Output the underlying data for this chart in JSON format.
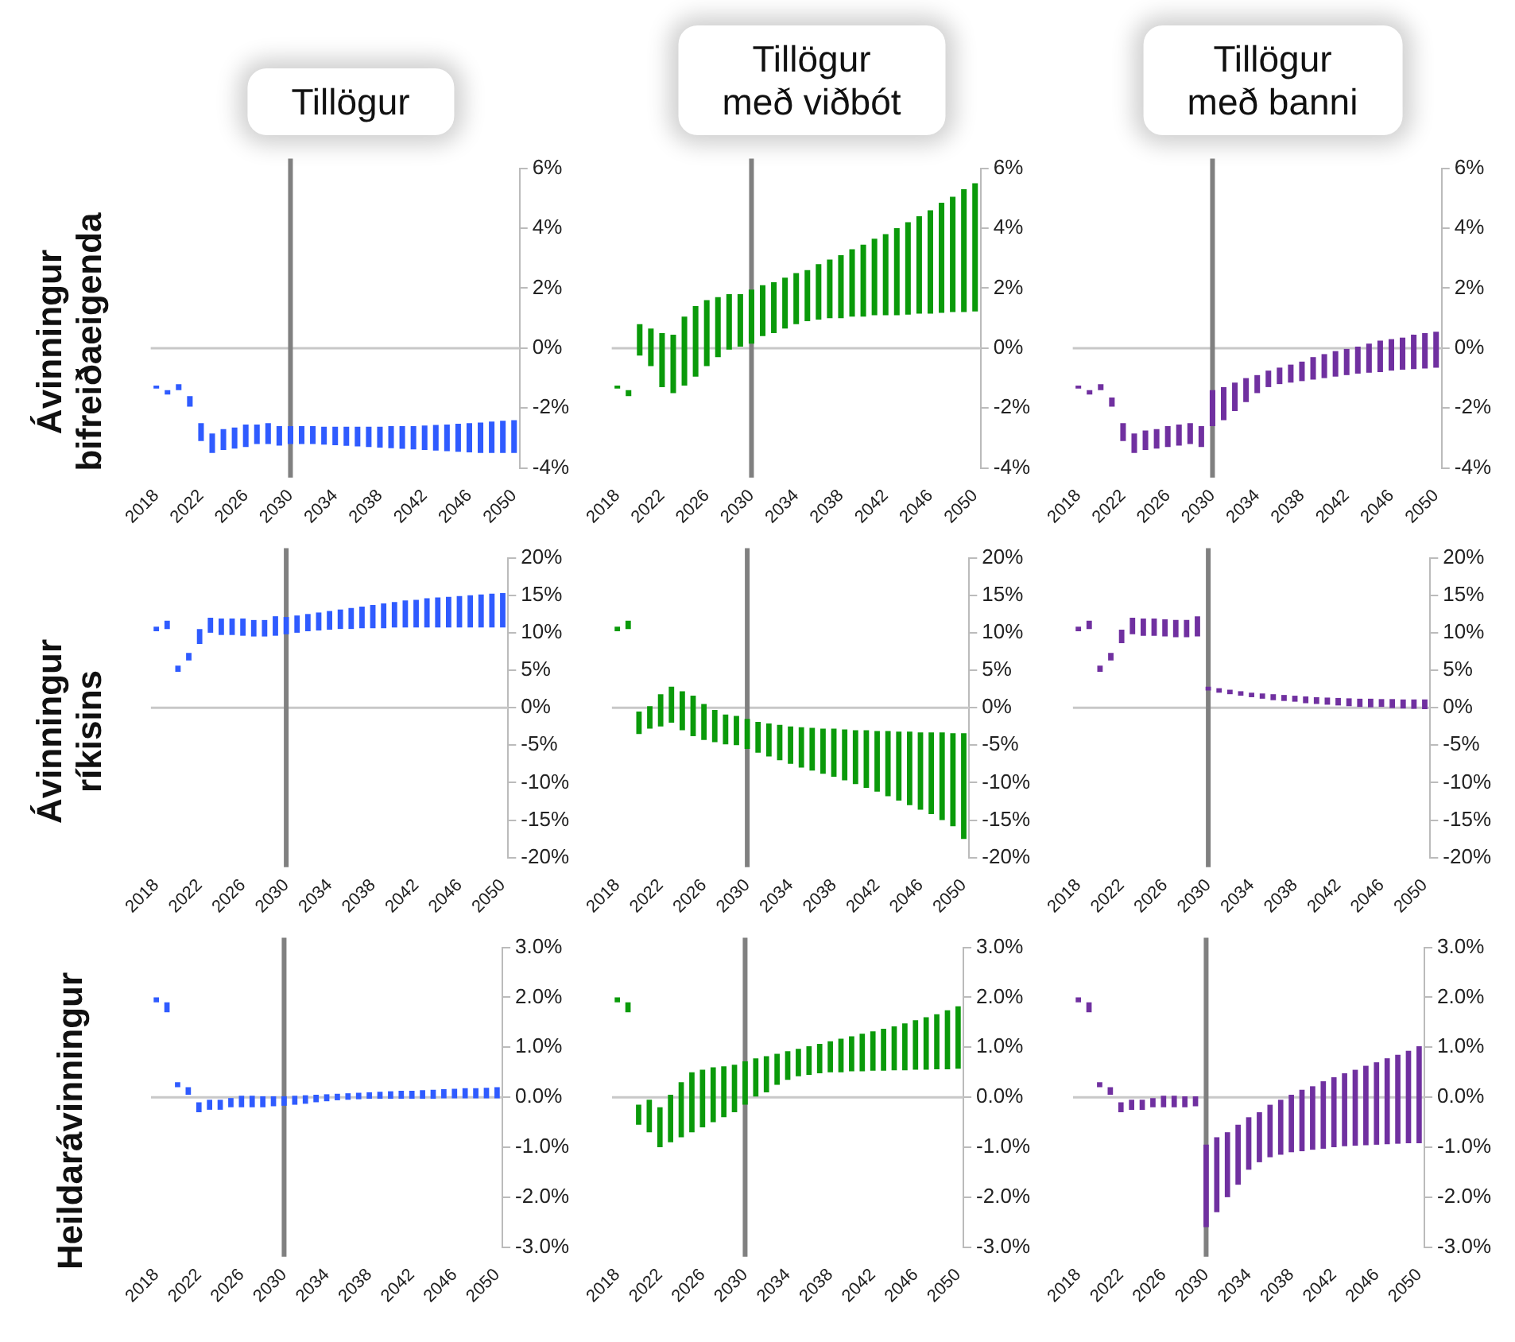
{
  "chart_data": [
    {
      "type": "bar",
      "title": "Tillögur",
      "ylabel": "Ávinningur\nbifreiðaeigenda",
      "categories": [
        "2018",
        null,
        null,
        null,
        "2022",
        null,
        null,
        null,
        "2026",
        null,
        null,
        null,
        "2030",
        null,
        null,
        null,
        "2034",
        null,
        null,
        null,
        "2038",
        null,
        null,
        null,
        "2042",
        null,
        null,
        null,
        "2046",
        null,
        null,
        null,
        "2050"
      ],
      "color": "#2f5bff",
      "base": [
        -1.35,
        -1.55,
        -1.4,
        -1.95,
        -3.1,
        -3.5,
        -3.4,
        -3.35,
        -3.3,
        -3.2,
        -3.2,
        -3.25,
        -3.2,
        -3.2,
        -3.2,
        -3.22,
        -3.24,
        -3.26,
        -3.28,
        -3.3,
        -3.32,
        -3.34,
        -3.36,
        -3.38,
        -3.4,
        -3.42,
        -3.44,
        -3.46,
        -3.48,
        -3.5,
        -3.5,
        -3.5,
        -3.5
      ],
      "values": [
        0.1,
        0.15,
        0.2,
        0.35,
        0.6,
        0.65,
        0.7,
        0.7,
        0.75,
        0.65,
        0.7,
        0.65,
        0.6,
        0.6,
        0.6,
        0.6,
        0.62,
        0.64,
        0.66,
        0.68,
        0.7,
        0.74,
        0.76,
        0.78,
        0.82,
        0.86,
        0.89,
        0.94,
        0.98,
        1.02,
        1.05,
        1.08,
        1.1
      ],
      "ylim": [
        -4,
        6
      ],
      "yticks": [
        {
          "value": -4,
          "label": "-4%"
        },
        {
          "value": -2,
          "label": "-2%"
        },
        {
          "value": 0,
          "label": "0%"
        },
        {
          "value": 2,
          "label": "2%"
        },
        {
          "value": 4,
          "label": "4%"
        },
        {
          "value": 6,
          "label": "6%"
        }
      ],
      "ref_lines": [
        {
          "axis": "x",
          "value": "2030",
          "color": "#808080"
        }
      ]
    },
    {
      "type": "bar",
      "title": "Tillögur\nmeð viðbót",
      "categories": [
        "2018",
        null,
        null,
        null,
        "2022",
        null,
        null,
        null,
        "2026",
        null,
        null,
        null,
        "2030",
        null,
        null,
        null,
        "2034",
        null,
        null,
        null,
        "2038",
        null,
        null,
        null,
        "2042",
        null,
        null,
        null,
        "2046",
        null,
        null,
        null,
        "2050"
      ],
      "color": "#0a9a0a",
      "base": [
        -1.35,
        -1.6,
        -0.25,
        -0.6,
        -1.3,
        -1.5,
        -1.25,
        -0.95,
        -0.6,
        -0.3,
        -0.05,
        0.05,
        0.15,
        0.4,
        0.5,
        0.65,
        0.8,
        0.9,
        0.95,
        1.0,
        1.0,
        1.05,
        1.05,
        1.1,
        1.1,
        1.1,
        1.12,
        1.15,
        1.15,
        1.18,
        1.2,
        1.2,
        1.22
      ],
      "values": [
        0.1,
        0.2,
        1.05,
        1.25,
        1.8,
        1.95,
        2.3,
        2.35,
        2.2,
        2.0,
        1.85,
        1.75,
        1.8,
        1.7,
        1.7,
        1.7,
        1.7,
        1.7,
        1.85,
        1.95,
        2.1,
        2.25,
        2.4,
        2.55,
        2.7,
        2.9,
        3.08,
        3.25,
        3.45,
        3.67,
        3.85,
        4.1,
        4.28
      ],
      "ylim": [
        -4,
        6
      ],
      "yticks": [
        {
          "value": -4,
          "label": "-4%"
        },
        {
          "value": -2,
          "label": "-2%"
        },
        {
          "value": 0,
          "label": "0%"
        },
        {
          "value": 2,
          "label": "2%"
        },
        {
          "value": 4,
          "label": "4%"
        },
        {
          "value": 6,
          "label": "6%"
        }
      ],
      "ref_lines": [
        {
          "axis": "x",
          "value": "2030",
          "color": "#808080"
        }
      ]
    },
    {
      "type": "bar",
      "title": "Tillögur\nmeð banni",
      "categories": [
        "2018",
        null,
        null,
        null,
        "2022",
        null,
        null,
        null,
        "2026",
        null,
        null,
        null,
        "2030",
        null,
        null,
        null,
        "2034",
        null,
        null,
        null,
        "2038",
        null,
        null,
        null,
        "2042",
        null,
        null,
        null,
        "2046",
        null,
        null,
        null,
        "2050"
      ],
      "color": "#7030a0",
      "base": [
        -1.35,
        -1.55,
        -1.4,
        -1.95,
        -3.1,
        -3.5,
        -3.4,
        -3.35,
        -3.3,
        -3.25,
        -3.2,
        -3.3,
        -2.6,
        -2.4,
        -2.1,
        -1.8,
        -1.5,
        -1.3,
        -1.2,
        -1.15,
        -1.1,
        -1.05,
        -1.0,
        -0.95,
        -0.9,
        -0.85,
        -0.82,
        -0.8,
        -0.75,
        -0.72,
        -0.7,
        -0.68,
        -0.65
      ],
      "values": [
        0.1,
        0.15,
        0.2,
        0.3,
        0.6,
        0.65,
        0.65,
        0.65,
        0.7,
        0.7,
        0.7,
        0.7,
        1.2,
        1.1,
        0.95,
        0.8,
        0.6,
        0.55,
        0.55,
        0.6,
        0.65,
        0.75,
        0.8,
        0.85,
        0.9,
        0.9,
        0.97,
        1.05,
        1.05,
        1.07,
        1.15,
        1.18,
        1.2
      ],
      "ylim": [
        -4,
        6
      ],
      "yticks": [
        {
          "value": -4,
          "label": "-4%"
        },
        {
          "value": -2,
          "label": "-2%"
        },
        {
          "value": 0,
          "label": "0%"
        },
        {
          "value": 2,
          "label": "2%"
        },
        {
          "value": 4,
          "label": "4%"
        },
        {
          "value": 6,
          "label": "6%"
        }
      ],
      "ref_lines": [
        {
          "axis": "x",
          "value": "2030",
          "color": "#808080"
        }
      ]
    },
    {
      "type": "bar",
      "ylabel": "Ávinningur\nríkisins",
      "categories": [
        "2018",
        null,
        null,
        null,
        "2022",
        null,
        null,
        null,
        "2026",
        null,
        null,
        null,
        "2030",
        null,
        null,
        null,
        "2034",
        null,
        null,
        null,
        "2038",
        null,
        null,
        null,
        "2042",
        null,
        null,
        null,
        "2046",
        null,
        null,
        null,
        "2050"
      ],
      "color": "#2f5bff",
      "base": [
        10.2,
        10.5,
        4.8,
        6.3,
        8.5,
        10,
        9.7,
        9.7,
        9.6,
        9.5,
        9.5,
        9.6,
        9.8,
        10,
        10.2,
        10.3,
        10.4,
        10.5,
        10.5,
        10.6,
        10.6,
        10.6,
        10.7,
        10.7,
        10.7,
        10.7,
        10.7,
        10.7,
        10.7,
        10.7,
        10.7,
        10.7,
        10.7
      ],
      "values": [
        0.6,
        1.1,
        0.8,
        1.0,
        2.0,
        2,
        2.2,
        2.2,
        2.3,
        2.2,
        2.2,
        2.6,
        2.3,
        2.3,
        2.3,
        2.4,
        2.5,
        2.6,
        2.8,
        2.9,
        3.1,
        3.3,
        3.4,
        3.6,
        3.7,
        3.9,
        4.0,
        4.1,
        4.2,
        4.3,
        4.4,
        4.5,
        4.6
      ],
      "ylim": [
        -20,
        20
      ],
      "yticks": [
        {
          "value": -20,
          "label": "-20%"
        },
        {
          "value": -15,
          "label": "-15%"
        },
        {
          "value": -10,
          "label": "-10%"
        },
        {
          "value": -5,
          "label": "-5%"
        },
        {
          "value": 0,
          "label": "0%"
        },
        {
          "value": 5,
          "label": "5%"
        },
        {
          "value": 10,
          "label": "10%"
        },
        {
          "value": 15,
          "label": "15%"
        },
        {
          "value": 20,
          "label": "20%"
        }
      ],
      "ref_lines": [
        {
          "axis": "x",
          "value": "2030",
          "color": "#808080"
        }
      ]
    },
    {
      "type": "bar",
      "categories": [
        "2018",
        null,
        null,
        null,
        "2022",
        null,
        null,
        null,
        "2026",
        null,
        null,
        null,
        "2030",
        null,
        null,
        null,
        "2034",
        null,
        null,
        null,
        "2038",
        null,
        null,
        null,
        "2042",
        null,
        null,
        null,
        "2046",
        null,
        null,
        null,
        "2050"
      ],
      "color": "#0a9a0a",
      "base": [
        10.2,
        10.5,
        -3.5,
        -2.8,
        -2.5,
        -2,
        -3,
        -3.8,
        -4.3,
        -4.6,
        -4.9,
        -5,
        -5.5,
        -6,
        -6.5,
        -7,
        -7.5,
        -8,
        -8.4,
        -8.8,
        -9.2,
        -9.7,
        -10.2,
        -10.7,
        -11.2,
        -11.8,
        -12.4,
        -13,
        -13.6,
        -14.2,
        -15,
        -15.8,
        -17.5
      ],
      "values": [
        0.6,
        1.1,
        3.0,
        3.0,
        4.3,
        4.8,
        5.2,
        5.4,
        4.8,
        4.3,
        4.0,
        3.9,
        4.0,
        4.1,
        4.4,
        4.7,
        5.0,
        5.4,
        5.7,
        6.0,
        6.4,
        6.8,
        7.2,
        7.7,
        8.1,
        8.7,
        9.2,
        9.8,
        10.3,
        10.9,
        11.7,
        12.4,
        14.1
      ],
      "ylim": [
        -20,
        20
      ],
      "yticks": [
        {
          "value": -20,
          "label": "-20%"
        },
        {
          "value": -15,
          "label": "-15%"
        },
        {
          "value": -10,
          "label": "-10%"
        },
        {
          "value": -5,
          "label": "-5%"
        },
        {
          "value": 0,
          "label": "0%"
        },
        {
          "value": 5,
          "label": "5%"
        },
        {
          "value": 10,
          "label": "10%"
        },
        {
          "value": 15,
          "label": "15%"
        },
        {
          "value": 20,
          "label": "20%"
        }
      ],
      "ref_lines": [
        {
          "axis": "x",
          "value": "2030",
          "color": "#808080"
        }
      ]
    },
    {
      "type": "bar",
      "categories": [
        "2018",
        null,
        null,
        null,
        "2022",
        null,
        null,
        null,
        "2026",
        null,
        null,
        null,
        "2030",
        null,
        null,
        null,
        "2034",
        null,
        null,
        null,
        "2038",
        null,
        null,
        null,
        "2042",
        null,
        null,
        null,
        "2046",
        null,
        null,
        null,
        "2050"
      ],
      "color": "#7030a0",
      "base": [
        10.2,
        10.5,
        4.8,
        6.3,
        8.6,
        9.8,
        9.6,
        9.6,
        9.5,
        9.4,
        9.4,
        9.5,
        2.3,
        2.0,
        1.8,
        1.6,
        1.4,
        1.2,
        1.0,
        0.9,
        0.8,
        0.6,
        0.5,
        0.4,
        0.3,
        0.2,
        0.1,
        0.05,
        0,
        -0.05,
        -0.1,
        -0.15,
        -0.2
      ],
      "values": [
        0.6,
        1.1,
        0.8,
        1.0,
        1.8,
        2.2,
        2.3,
        2.3,
        2.3,
        2.3,
        2.3,
        2.7,
        0.5,
        0.6,
        0.6,
        0.6,
        0.6,
        0.7,
        0.8,
        0.8,
        0.8,
        0.9,
        0.9,
        0.95,
        1.0,
        1.05,
        1.1,
        1.15,
        1.15,
        1.2,
        1.2,
        1.25,
        1.3
      ],
      "ylim": [
        -20,
        20
      ],
      "yticks": [
        {
          "value": -20,
          "label": "-20%"
        },
        {
          "value": -15,
          "label": "-15%"
        },
        {
          "value": -10,
          "label": "-10%"
        },
        {
          "value": -5,
          "label": "-5%"
        },
        {
          "value": 0,
          "label": "0%"
        },
        {
          "value": 5,
          "label": "5%"
        },
        {
          "value": 10,
          "label": "10%"
        },
        {
          "value": 15,
          "label": "15%"
        },
        {
          "value": 20,
          "label": "20%"
        }
      ],
      "ref_lines": [
        {
          "axis": "x",
          "value": "2030",
          "color": "#808080"
        }
      ]
    },
    {
      "type": "bar",
      "ylabel": "Heildarávinningur",
      "categories": [
        "2018",
        null,
        null,
        null,
        "2022",
        null,
        null,
        null,
        "2026",
        null,
        null,
        null,
        "2030",
        null,
        null,
        null,
        "2034",
        null,
        null,
        null,
        "2038",
        null,
        null,
        null,
        "2042",
        null,
        null,
        null,
        "2046",
        null,
        null,
        null,
        "2050"
      ],
      "color": "#2f5bff",
      "base": [
        1.9,
        1.7,
        0.2,
        0.05,
        -0.3,
        -0.25,
        -0.25,
        -0.2,
        -0.2,
        -0.2,
        -0.2,
        -0.18,
        -0.17,
        -0.15,
        -0.13,
        -0.1,
        -0.08,
        -0.06,
        -0.05,
        -0.04,
        -0.03,
        -0.03,
        -0.03,
        -0.03,
        -0.03,
        -0.03,
        -0.03,
        -0.02,
        -0.02,
        -0.02,
        -0.02,
        -0.02,
        -0.02
      ],
      "values": [
        0.1,
        0.2,
        0.1,
        0.15,
        0.2,
        0.2,
        0.2,
        0.2,
        0.23,
        0.23,
        0.22,
        0.2,
        0.19,
        0.18,
        0.17,
        0.15,
        0.14,
        0.13,
        0.13,
        0.13,
        0.13,
        0.14,
        0.15,
        0.16,
        0.16,
        0.17,
        0.18,
        0.18,
        0.19,
        0.2,
        0.2,
        0.21,
        0.22
      ],
      "ylim": [
        -3,
        3
      ],
      "yticks": [
        {
          "value": -3,
          "label": "-3.0%"
        },
        {
          "value": -2,
          "label": "-2.0%"
        },
        {
          "value": -1,
          "label": "-1.0%"
        },
        {
          "value": 0,
          "label": "0.0%"
        },
        {
          "value": 1,
          "label": "1.0%"
        },
        {
          "value": 2,
          "label": "2.0%"
        },
        {
          "value": 3,
          "label": "3.0%"
        }
      ],
      "ref_lines": [
        {
          "axis": "x",
          "value": "2030",
          "color": "#808080"
        }
      ]
    },
    {
      "type": "bar",
      "categories": [
        "2018",
        null,
        null,
        null,
        "2022",
        null,
        null,
        null,
        "2026",
        null,
        null,
        null,
        "2030",
        null,
        null,
        null,
        "2034",
        null,
        null,
        null,
        "2038",
        null,
        null,
        null,
        "2042",
        null,
        null,
        null,
        "2046",
        null,
        null,
        null,
        "2050"
      ],
      "color": "#0a9a0a",
      "base": [
        1.9,
        1.7,
        -0.55,
        -0.7,
        -1.0,
        -0.9,
        -0.8,
        -0.7,
        -0.6,
        -0.5,
        -0.4,
        -0.3,
        -0.15,
        0,
        0.1,
        0.25,
        0.35,
        0.42,
        0.45,
        0.48,
        0.5,
        0.5,
        0.52,
        0.52,
        0.53,
        0.53,
        0.54,
        0.54,
        0.55,
        0.55,
        0.56,
        0.56,
        0.57
      ],
      "values": [
        0.1,
        0.2,
        0.4,
        0.65,
        0.8,
        0.95,
        1.1,
        1.2,
        1.15,
        1.1,
        1.02,
        0.95,
        0.87,
        0.78,
        0.72,
        0.62,
        0.57,
        0.55,
        0.57,
        0.59,
        0.62,
        0.67,
        0.7,
        0.75,
        0.79,
        0.84,
        0.88,
        0.94,
        0.99,
        1.05,
        1.1,
        1.18,
        1.25
      ],
      "ylim": [
        -3,
        3
      ],
      "yticks": [
        {
          "value": -3,
          "label": "-3.0%"
        },
        {
          "value": -2,
          "label": "-2.0%"
        },
        {
          "value": -1,
          "label": "-1.0%"
        },
        {
          "value": 0,
          "label": "0.0%"
        },
        {
          "value": 1,
          "label": "1.0%"
        },
        {
          "value": 2,
          "label": "2.0%"
        },
        {
          "value": 3,
          "label": "3.0%"
        }
      ],
      "ref_lines": [
        {
          "axis": "x",
          "value": "2030",
          "color": "#808080"
        }
      ]
    },
    {
      "type": "bar",
      "categories": [
        "2018",
        null,
        null,
        null,
        "2022",
        null,
        null,
        null,
        "2026",
        null,
        null,
        null,
        "2030",
        null,
        null,
        null,
        "2034",
        null,
        null,
        null,
        "2038",
        null,
        null,
        null,
        "2042",
        null,
        null,
        null,
        "2046",
        null,
        null,
        null,
        "2050"
      ],
      "color": "#7030a0",
      "base": [
        1.9,
        1.7,
        0.2,
        0.05,
        -0.3,
        -0.25,
        -0.25,
        -0.2,
        -0.2,
        -0.2,
        -0.2,
        -0.18,
        -2.6,
        -2.3,
        -2.0,
        -1.75,
        -1.45,
        -1.3,
        -1.2,
        -1.15,
        -1.1,
        -1.08,
        -1.05,
        -1.03,
        -1.0,
        -0.98,
        -0.97,
        -0.96,
        -0.95,
        -0.94,
        -0.93,
        -0.92,
        -0.92
      ],
      "values": [
        0.1,
        0.2,
        0.1,
        0.15,
        0.2,
        0.2,
        0.2,
        0.2,
        0.23,
        0.23,
        0.22,
        0.2,
        1.65,
        1.5,
        1.3,
        1.2,
        1.05,
        1.0,
        1.05,
        1.1,
        1.15,
        1.23,
        1.27,
        1.35,
        1.4,
        1.46,
        1.52,
        1.59,
        1.65,
        1.72,
        1.78,
        1.85,
        1.94
      ],
      "ylim": [
        -3,
        3
      ],
      "yticks": [
        {
          "value": -3,
          "label": "-3.0%"
        },
        {
          "value": -2,
          "label": "-2.0%"
        },
        {
          "value": -1,
          "label": "-1.0%"
        },
        {
          "value": 0,
          "label": "0.0%"
        },
        {
          "value": 1,
          "label": "1.0%"
        },
        {
          "value": 2,
          "label": "2.0%"
        },
        {
          "value": 3,
          "label": "3.0%"
        }
      ],
      "ref_lines": [
        {
          "axis": "x",
          "value": "2030",
          "color": "#808080"
        }
      ]
    }
  ]
}
